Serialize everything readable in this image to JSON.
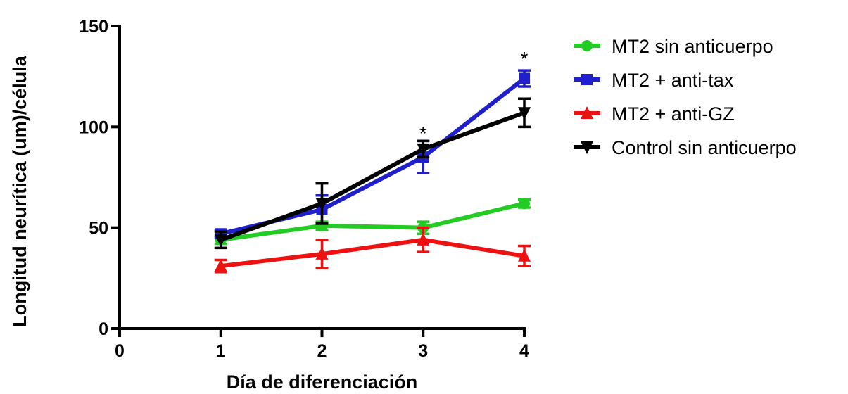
{
  "chart_data": {
    "type": "line",
    "xlabel": "Día de diferenciación",
    "ylabel": "Longitud neurítica (um)/célula",
    "xlim": [
      0,
      4
    ],
    "ylim": [
      0,
      150
    ],
    "x_ticks": [
      "0",
      "1",
      "2",
      "3",
      "4"
    ],
    "y_ticks": [
      "0",
      "50",
      "100",
      "150"
    ],
    "grid": false,
    "legend_position": "right",
    "series": [
      {
        "name": "MT2 sin anticuerpo",
        "color": "#22cc22",
        "marker": "circle",
        "x": [
          1,
          2,
          3,
          4
        ],
        "y": [
          44,
          51,
          50,
          62
        ],
        "err": [
          2,
          2,
          3,
          2
        ]
      },
      {
        "name": "MT2 + anti-tax",
        "color": "#1f1fcc",
        "marker": "square",
        "x": [
          1,
          2,
          3,
          4
        ],
        "y": [
          47,
          59,
          85,
          124
        ],
        "err": [
          2,
          7,
          8,
          4
        ]
      },
      {
        "name": "MT2 + anti-GZ",
        "color": "#ee1111",
        "marker": "triangle-up",
        "x": [
          1,
          2,
          3,
          4
        ],
        "y": [
          31,
          37,
          44,
          36
        ],
        "err": [
          3,
          7,
          6,
          5
        ]
      },
      {
        "name": "Control sin anticuerpo",
        "color": "#000000",
        "marker": "triangle-down",
        "x": [
          1,
          2,
          3,
          4
        ],
        "y": [
          44,
          62,
          89,
          107
        ],
        "err": [
          4,
          10,
          4,
          7
        ]
      }
    ],
    "annotations": [
      {
        "text": "*",
        "x": 3,
        "y": 97
      },
      {
        "text": "*",
        "x": 4,
        "y": 134
      }
    ]
  }
}
